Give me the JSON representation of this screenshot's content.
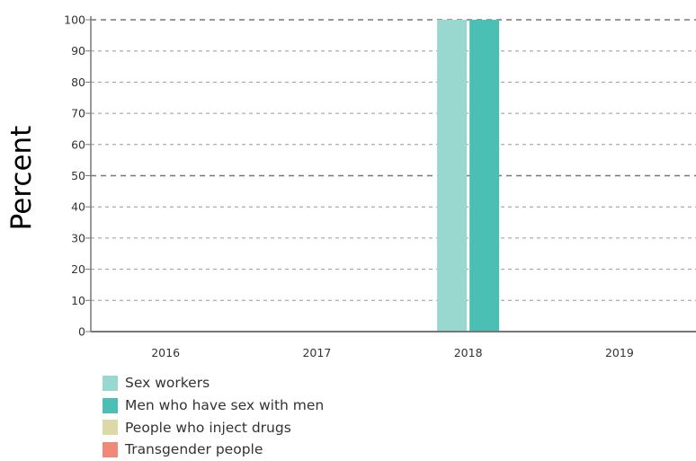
{
  "chart_data": {
    "type": "bar",
    "ylabel": "Percent",
    "ylim": [
      0,
      100
    ],
    "yticks": [
      0,
      10,
      20,
      30,
      40,
      50,
      60,
      70,
      80,
      90,
      100
    ],
    "categories": [
      "2016",
      "2017",
      "2018",
      "2019"
    ],
    "grid": true,
    "legend_position": "bottom-left",
    "series": [
      {
        "name": "Sex workers",
        "color": "#99d8cf",
        "values": [
          null,
          null,
          100,
          null
        ]
      },
      {
        "name": "Men who have sex with men",
        "color": "#4bbfb4",
        "values": [
          null,
          null,
          100,
          null
        ]
      },
      {
        "name": "People who inject drugs",
        "color": "#ddd8a8",
        "values": [
          null,
          null,
          null,
          null
        ]
      },
      {
        "name": "Transgender people",
        "color": "#f08877",
        "values": [
          null,
          null,
          null,
          null
        ]
      }
    ]
  }
}
